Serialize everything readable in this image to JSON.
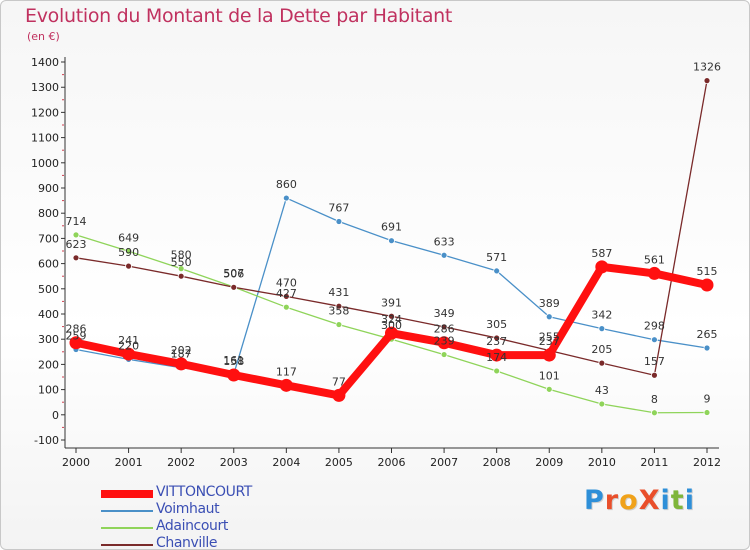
{
  "title": "Evolution du Montant de la Dette par Habitant",
  "subtitle": "(en €)",
  "brand": {
    "name": "Proxiti",
    "letters": [
      {
        "ch": "P",
        "color": "#2e8fd8"
      },
      {
        "ch": "r",
        "color": "#e94f2b"
      },
      {
        "ch": "o",
        "color": "#f0a21a"
      },
      {
        "ch": "X",
        "color": "#e94f2b"
      },
      {
        "ch": "i",
        "color": "#2e8fd8"
      },
      {
        "ch": "t",
        "color": "#7fb53a"
      },
      {
        "ch": "i",
        "color": "#2e8fd8"
      }
    ]
  },
  "chart_data": {
    "type": "line",
    "x": [
      "2000",
      "2001",
      "2002",
      "2003",
      "2004",
      "2005",
      "2006",
      "2007",
      "2008",
      "2009",
      "2010",
      "2011",
      "2012"
    ],
    "ylim": [
      -100,
      1400
    ],
    "yticks": [
      "-100",
      "0",
      "100",
      "200",
      "300",
      "400",
      "500",
      "600",
      "700",
      "800",
      "900",
      "1000",
      "1100",
      "1200",
      "1300",
      "1400"
    ],
    "grid": false,
    "legend_position": "bottom-left",
    "series": [
      {
        "name": "Voimhaut",
        "color": "#4a90c8",
        "values": [
          259,
          220,
          187,
          161,
          860,
          767,
          691,
          633,
          571,
          389,
          342,
          298,
          265
        ],
        "labels": [
          "259",
          "220",
          "187",
          "161",
          "860",
          "767",
          "691",
          "633",
          "571",
          "389",
          "342",
          "298",
          "265"
        ]
      },
      {
        "name": "Adaincourt",
        "color": "#8fd45a",
        "values": [
          714,
          649,
          580,
          507,
          427,
          358,
          300,
          239,
          174,
          101,
          43,
          8,
          9
        ],
        "labels": [
          "714",
          "649",
          "580",
          "507",
          "427",
          "358",
          "300",
          "239",
          "174",
          "101",
          "43",
          "8",
          "9"
        ]
      },
      {
        "name": "Chanville",
        "color": "#7a2a2a",
        "values": [
          623,
          590,
          550,
          506,
          470,
          431,
          391,
          349,
          305,
          255,
          205,
          157,
          1326
        ],
        "labels": [
          "623",
          "590",
          "550",
          "506",
          "470",
          "431",
          "391",
          "349",
          "305",
          "255",
          "205",
          "157",
          "1326"
        ]
      },
      {
        "name": "VITTONCOURT",
        "color": "#ff1010",
        "values": [
          286,
          241,
          202,
          158,
          117,
          77,
          324,
          286,
          237,
          237,
          587,
          561,
          515
        ],
        "labels": [
          "286",
          "241",
          "202",
          "158",
          "117",
          "77",
          "324",
          "286",
          "237",
          "237",
          "587",
          "561",
          "515"
        ]
      }
    ]
  }
}
